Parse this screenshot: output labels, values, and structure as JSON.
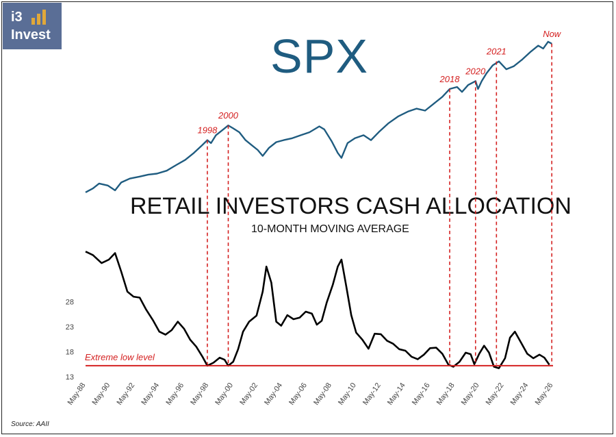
{
  "logo": {
    "line1": "i3",
    "line2": "Invest",
    "bars": [
      0.45,
      0.75,
      1.0
    ]
  },
  "source": "Source: AAII",
  "chart_data": [
    {
      "type": "line",
      "title": "SPX",
      "series": [
        {
          "color": "#1f5c80",
          "values": [
            [
              1988.4,
              0.05
            ],
            [
              1989.0,
              0.09
            ],
            [
              1989.5,
              0.14
            ],
            [
              1990.2,
              0.12
            ],
            [
              1990.8,
              0.07
            ],
            [
              1991.3,
              0.15
            ],
            [
              1992.0,
              0.19
            ],
            [
              1992.8,
              0.21
            ],
            [
              1993.5,
              0.23
            ],
            [
              1994.2,
              0.24
            ],
            [
              1995.0,
              0.27
            ],
            [
              1995.8,
              0.33
            ],
            [
              1996.5,
              0.38
            ],
            [
              1997.2,
              0.45
            ],
            [
              1997.8,
              0.52
            ],
            [
              1998.3,
              0.58
            ],
            [
              1998.6,
              0.55
            ],
            [
              1999.0,
              0.63
            ],
            [
              1999.5,
              0.68
            ],
            [
              2000.0,
              0.73
            ],
            [
              2000.4,
              0.7
            ],
            [
              2000.9,
              0.66
            ],
            [
              2001.4,
              0.58
            ],
            [
              2001.9,
              0.53
            ],
            [
              2002.4,
              0.48
            ],
            [
              2002.8,
              0.42
            ],
            [
              2003.3,
              0.5
            ],
            [
              2003.9,
              0.56
            ],
            [
              2004.5,
              0.58
            ],
            [
              2005.2,
              0.6
            ],
            [
              2005.9,
              0.63
            ],
            [
              2006.6,
              0.66
            ],
            [
              2007.4,
              0.72
            ],
            [
              2007.8,
              0.69
            ],
            [
              2008.4,
              0.57
            ],
            [
              2008.9,
              0.45
            ],
            [
              2009.2,
              0.4
            ],
            [
              2009.7,
              0.55
            ],
            [
              2010.3,
              0.6
            ],
            [
              2011.0,
              0.63
            ],
            [
              2011.6,
              0.58
            ],
            [
              2012.3,
              0.67
            ],
            [
              2013.0,
              0.75
            ],
            [
              2013.8,
              0.82
            ],
            [
              2014.6,
              0.87
            ],
            [
              2015.3,
              0.9
            ],
            [
              2016.0,
              0.88
            ],
            [
              2016.7,
              0.95
            ],
            [
              2017.4,
              1.02
            ],
            [
              2018.0,
              1.1
            ],
            [
              2018.6,
              1.12
            ],
            [
              2019.0,
              1.07
            ],
            [
              2019.5,
              1.14
            ],
            [
              2020.1,
              1.18
            ],
            [
              2020.3,
              1.1
            ],
            [
              2020.6,
              1.18
            ],
            [
              2021.0,
              1.26
            ],
            [
              2021.5,
              1.34
            ],
            [
              2022.0,
              1.38
            ],
            [
              2022.6,
              1.3
            ],
            [
              2023.2,
              1.33
            ],
            [
              2023.9,
              1.4
            ],
            [
              2024.6,
              1.48
            ],
            [
              2025.2,
              1.54
            ],
            [
              2025.6,
              1.51
            ],
            [
              2026.0,
              1.58
            ],
            [
              2026.3,
              1.56
            ]
          ]
        }
      ],
      "markers": [
        {
          "label": "1998",
          "x": 1998.3
        },
        {
          "label": "2000",
          "x": 2000.0
        },
        {
          "label": "2018",
          "x": 2018.0
        },
        {
          "label": "2020",
          "x": 2020.1
        },
        {
          "label": "2021",
          "x": 2021.8
        },
        {
          "label": "Now",
          "x": 2026.3
        }
      ],
      "marker_color": "#d42020"
    },
    {
      "type": "line",
      "title": "RETAIL INVESTORS CASH ALLOCATION",
      "subtitle": "10-MONTH MOVING AVERAGE",
      "ylim": [
        13,
        39
      ],
      "yticks": [
        13,
        18,
        23,
        28
      ],
      "xticks": [
        "May-88",
        "May-90",
        "May-92",
        "May-94",
        "May-96",
        "May-98",
        "May-00",
        "May-02",
        "May-04",
        "May-06",
        "May-08",
        "May-10",
        "May-12",
        "May-14",
        "May-16",
        "May-18",
        "May-20",
        "May-22",
        "May-24",
        "May-26"
      ],
      "xrange": [
        1988.4,
        2026.4
      ],
      "reference_line": {
        "value": 15.2,
        "label": "Extreme low level",
        "color": "#d42020"
      },
      "series": [
        {
          "color": "#000000",
          "values": [
            [
              1988.4,
              38.0
            ],
            [
              1989.0,
              37.3
            ],
            [
              1989.7,
              35.7
            ],
            [
              1990.3,
              36.4
            ],
            [
              1990.8,
              37.7
            ],
            [
              1991.3,
              34.0
            ],
            [
              1991.8,
              30.0
            ],
            [
              1992.3,
              29.0
            ],
            [
              1992.8,
              28.8
            ],
            [
              1993.3,
              26.5
            ],
            [
              1993.9,
              24.2
            ],
            [
              1994.4,
              22.0
            ],
            [
              1994.9,
              21.4
            ],
            [
              1995.4,
              22.3
            ],
            [
              1995.9,
              24.0
            ],
            [
              1996.4,
              22.6
            ],
            [
              1996.9,
              20.4
            ],
            [
              1997.4,
              19.0
            ],
            [
              1997.9,
              17.0
            ],
            [
              1998.3,
              15.2
            ],
            [
              1998.8,
              15.8
            ],
            [
              1999.3,
              16.8
            ],
            [
              1999.7,
              16.4
            ],
            [
              2000.0,
              15.2
            ],
            [
              2000.4,
              16.0
            ],
            [
              2000.8,
              18.5
            ],
            [
              2001.2,
              22.0
            ],
            [
              2001.7,
              24.0
            ],
            [
              2002.3,
              25.2
            ],
            [
              2002.8,
              30.0
            ],
            [
              2003.1,
              35.0
            ],
            [
              2003.5,
              31.8
            ],
            [
              2003.9,
              24.0
            ],
            [
              2004.3,
              23.2
            ],
            [
              2004.8,
              25.3
            ],
            [
              2005.3,
              24.5
            ],
            [
              2005.8,
              24.8
            ],
            [
              2006.3,
              26.0
            ],
            [
              2006.8,
              25.6
            ],
            [
              2007.2,
              23.4
            ],
            [
              2007.6,
              24.2
            ],
            [
              2008.0,
              27.8
            ],
            [
              2008.5,
              31.4
            ],
            [
              2008.9,
              35.0
            ],
            [
              2009.2,
              36.4
            ],
            [
              2009.6,
              31.0
            ],
            [
              2010.0,
              25.3
            ],
            [
              2010.4,
              21.8
            ],
            [
              2010.9,
              20.4
            ],
            [
              2011.4,
              18.6
            ],
            [
              2011.9,
              21.6
            ],
            [
              2012.4,
              21.5
            ],
            [
              2012.9,
              20.2
            ],
            [
              2013.4,
              19.6
            ],
            [
              2013.9,
              18.5
            ],
            [
              2014.4,
              18.2
            ],
            [
              2014.9,
              17.0
            ],
            [
              2015.4,
              16.5
            ],
            [
              2015.9,
              17.4
            ],
            [
              2016.4,
              18.7
            ],
            [
              2016.9,
              18.8
            ],
            [
              2017.4,
              17.6
            ],
            [
              2017.9,
              15.4
            ],
            [
              2018.3,
              15.0
            ],
            [
              2018.8,
              16.0
            ],
            [
              2019.3,
              17.8
            ],
            [
              2019.7,
              17.5
            ],
            [
              2020.0,
              15.5
            ],
            [
              2020.4,
              17.6
            ],
            [
              2020.8,
              19.2
            ],
            [
              2021.2,
              17.8
            ],
            [
              2021.6,
              15.0
            ],
            [
              2022.0,
              14.7
            ],
            [
              2022.5,
              16.7
            ],
            [
              2022.9,
              20.8
            ],
            [
              2023.3,
              22.0
            ],
            [
              2023.8,
              19.8
            ],
            [
              2024.3,
              17.6
            ],
            [
              2024.8,
              16.7
            ],
            [
              2025.3,
              17.4
            ],
            [
              2025.7,
              16.8
            ],
            [
              2026.1,
              15.4
            ]
          ]
        }
      ]
    }
  ]
}
